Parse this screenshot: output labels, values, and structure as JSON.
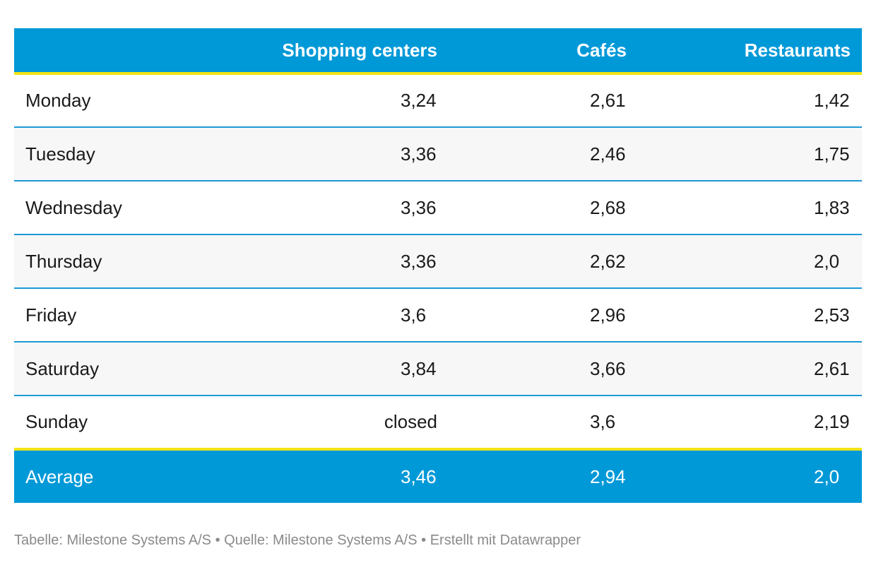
{
  "chart_data": {
    "type": "table",
    "columns": [
      "",
      "Shopping centers",
      "Cafés",
      "Restaurants"
    ],
    "rows": [
      {
        "label": "Monday",
        "values": [
          "3,24",
          "2,61",
          "1,42"
        ]
      },
      {
        "label": "Tuesday",
        "values": [
          "3,36",
          "2,46",
          "1,75"
        ]
      },
      {
        "label": "Wednesday",
        "values": [
          "3,36",
          "2,68",
          "1,83"
        ]
      },
      {
        "label": "Thursday",
        "values": [
          "3,36",
          "2,62",
          "2,0"
        ]
      },
      {
        "label": "Friday",
        "values": [
          "3,6",
          "2,96",
          "2,53"
        ]
      },
      {
        "label": "Saturday",
        "values": [
          "3,84",
          "3,66",
          "2,61"
        ]
      },
      {
        "label": "Sunday",
        "values": [
          "closed",
          "3,6",
          "2,19"
        ]
      }
    ],
    "summary": {
      "label": "Average",
      "values": [
        "3,46",
        "2,94",
        "2,0"
      ]
    },
    "footer": "Tabelle: Milestone Systems A/S • Quelle: Milestone Systems A/S • Erstellt mit Datawrapper"
  },
  "colors": {
    "header_bg": "#0099d8",
    "accent_line": "#f1e314",
    "row_divider": "#1c9ad6",
    "alt_row_bg": "#f7f7f7",
    "footer_text": "#8a8a8a"
  }
}
